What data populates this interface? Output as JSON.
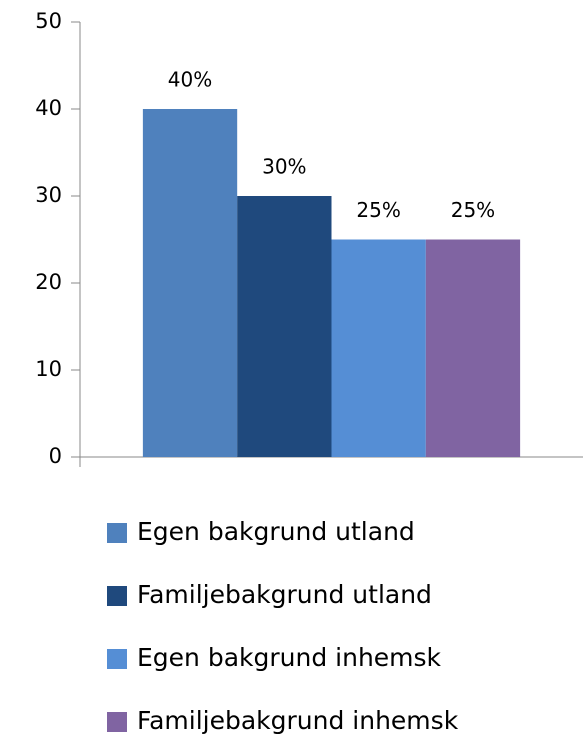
{
  "chart_data": {
    "type": "bar",
    "categories": [
      null
    ],
    "series": [
      {
        "name": "Egen bakgrund utland",
        "color": "#4f81bd",
        "values": [
          40
        ],
        "value_labels": [
          "40%"
        ]
      },
      {
        "name": "Familjebakgrund utland",
        "color": "#1f497d",
        "values": [
          30
        ],
        "value_labels": [
          "30%"
        ]
      },
      {
        "name": "Egen bakgrund inhemsk",
        "color": "#558ed5",
        "values": [
          25
        ],
        "value_labels": [
          "25%"
        ]
      },
      {
        "name": "Familjebakgrund inhemsk",
        "color": "#8064a2",
        "values": [
          25
        ],
        "value_labels": [
          "25%"
        ]
      }
    ],
    "ylim": [
      0,
      50
    ],
    "yticks": [
      0,
      10,
      20,
      30,
      40,
      50
    ],
    "grid": false,
    "legend": "bottom"
  }
}
